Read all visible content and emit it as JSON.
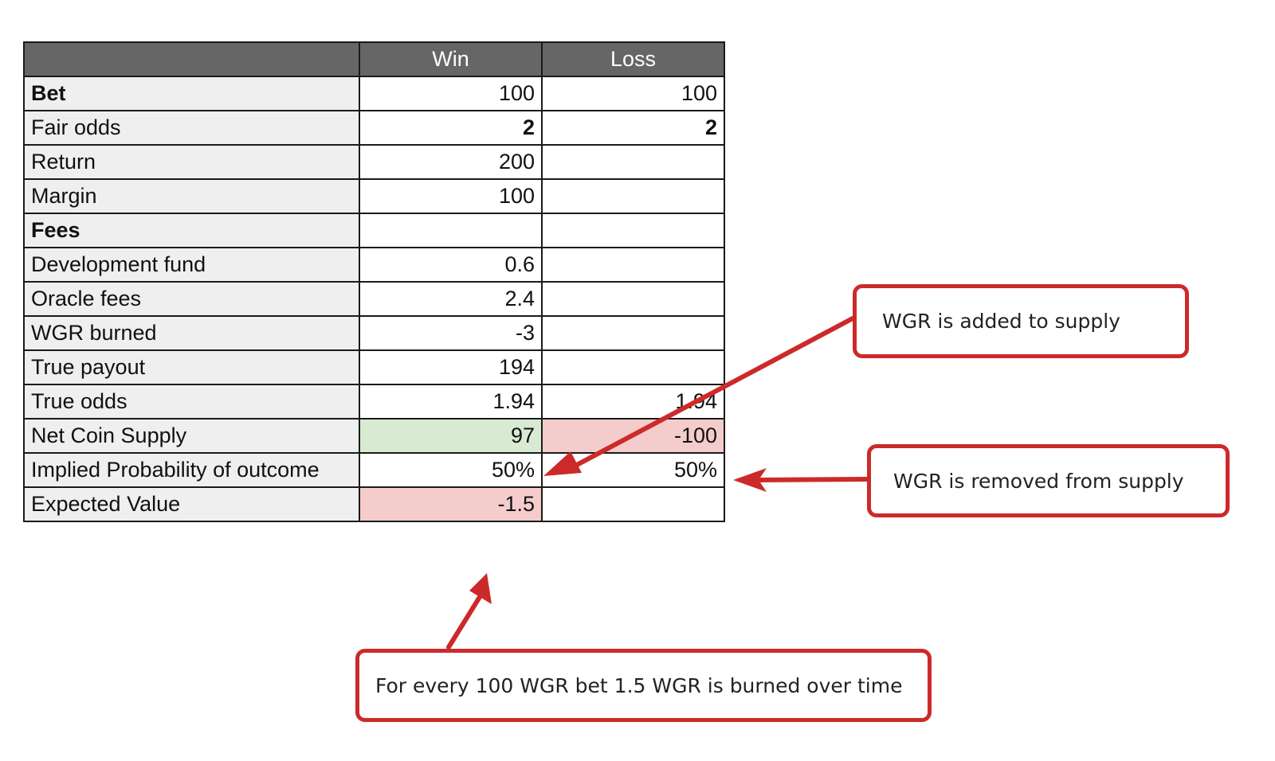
{
  "table": {
    "headers": [
      "",
      "Win",
      "Loss"
    ],
    "rows": [
      {
        "label": "Bet",
        "win": "100",
        "loss": "100"
      },
      {
        "label": "Fair odds",
        "win": "2",
        "loss": "2"
      },
      {
        "label": "Return",
        "win": "200",
        "loss": ""
      },
      {
        "label": "Margin",
        "win": "100",
        "loss": ""
      },
      {
        "label": "Fees",
        "win": "",
        "loss": ""
      },
      {
        "label": "Development fund",
        "win": "0.6",
        "loss": ""
      },
      {
        "label": "Oracle fees",
        "win": "2.4",
        "loss": ""
      },
      {
        "label": "WGR burned",
        "win": "-3",
        "loss": ""
      },
      {
        "label": "True payout",
        "win": "194",
        "loss": ""
      },
      {
        "label": "True odds",
        "win": "1.94",
        "loss": "1.94"
      },
      {
        "label": "Net Coin Supply",
        "win": "97",
        "loss": "-100"
      },
      {
        "label": "Implied Probability of outcome",
        "win": "50%",
        "loss": "50%"
      },
      {
        "label": "Expected Value",
        "win": "-1.5",
        "loss": ""
      }
    ]
  },
  "callouts": {
    "added": "WGR is added to supply",
    "removed": "WGR is removed from supply",
    "burned": "For every 100 WGR bet 1.5 WGR is burned over time"
  },
  "colors": {
    "header_bg": "#666666",
    "label_bg": "#efefef",
    "positive_cell": "#d9ead3",
    "negative_cell": "#f4cccc",
    "annotation_red": "#cc2a2a"
  }
}
